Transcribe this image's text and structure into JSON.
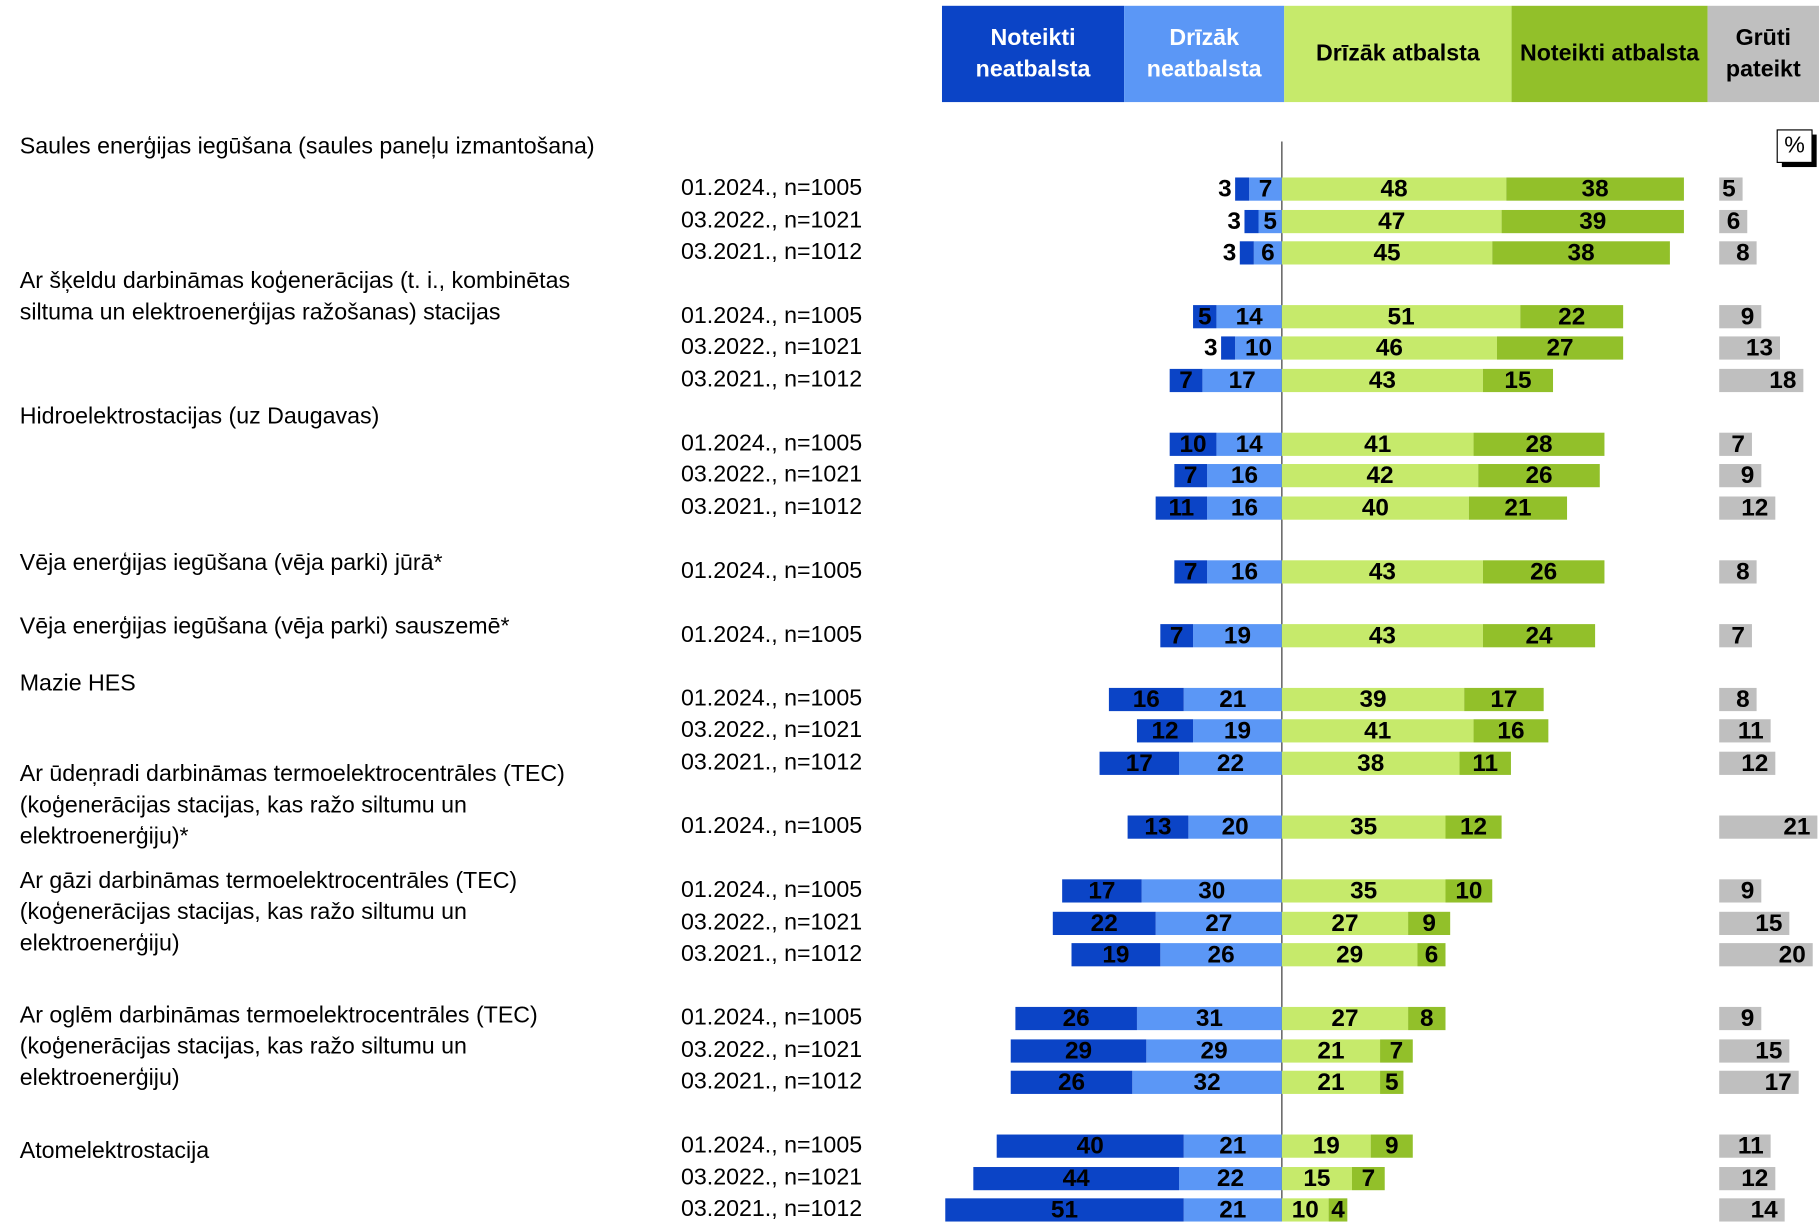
{
  "chart_data": {
    "type": "diverging_bar",
    "unit_label": "%",
    "series": [
      {
        "name": "Noteikti neatbalsta",
        "color": "#0b44c6",
        "side": "negative"
      },
      {
        "name": "Drīzāk neatbalsta",
        "color": "#5b97f6",
        "side": "negative"
      },
      {
        "name": "Drīzāk atbalsta",
        "color": "#c6ea6b",
        "side": "positive"
      },
      {
        "name": "Noteikti atbalsta",
        "color": "#92c02a",
        "side": "positive"
      },
      {
        "name": "Grūti pateikt",
        "color": "#bfbfbf",
        "side": "separate"
      }
    ],
    "groups": [
      {
        "label": [
          "Saules enerģijas iegūšana (saules paneļu izmantošana)"
        ],
        "rows": [
          {
            "label": "01.2024., n=1005",
            "values": [
              3,
              7,
              48,
              38,
              5
            ]
          },
          {
            "label": "03.2022., n=1021",
            "values": [
              3,
              5,
              47,
              39,
              6
            ]
          },
          {
            "label": "03.2021., n=1012",
            "values": [
              3,
              6,
              45,
              38,
              8
            ]
          }
        ]
      },
      {
        "label": [
          "Ar šķeldu darbināmas koģenerācijas (t. i., kombinētas",
          "siltuma un elektroenerģijas ražošanas) stacijas"
        ],
        "rows": [
          {
            "label": "01.2024., n=1005",
            "values": [
              5,
              14,
              51,
              22,
              9
            ]
          },
          {
            "label": "03.2022., n=1021",
            "values": [
              3,
              10,
              46,
              27,
              13
            ]
          },
          {
            "label": "03.2021., n=1012",
            "values": [
              7,
              17,
              43,
              15,
              18
            ]
          }
        ]
      },
      {
        "label": [
          "Hidroelektrostacijas (uz Daugavas)"
        ],
        "rows": [
          {
            "label": "01.2024., n=1005",
            "values": [
              10,
              14,
              41,
              28,
              7
            ]
          },
          {
            "label": "03.2022., n=1021",
            "values": [
              7,
              16,
              42,
              26,
              9
            ]
          },
          {
            "label": "03.2021., n=1012",
            "values": [
              11,
              16,
              40,
              21,
              12
            ]
          }
        ]
      },
      {
        "label": [
          "Vēja enerģijas iegūšana (vēja parki) jūrā*"
        ],
        "rows": [
          {
            "label": "01.2024., n=1005",
            "values": [
              7,
              16,
              43,
              26,
              8
            ]
          }
        ]
      },
      {
        "label": [
          "Vēja enerģijas iegūšana (vēja parki) sauszemē*"
        ],
        "rows": [
          {
            "label": "01.2024., n=1005",
            "values": [
              7,
              19,
              43,
              24,
              7
            ]
          }
        ]
      },
      {
        "label": [
          "Mazie HES"
        ],
        "rows": [
          {
            "label": "01.2024., n=1005",
            "values": [
              16,
              21,
              39,
              17,
              8
            ]
          },
          {
            "label": "03.2022., n=1021",
            "values": [
              12,
              19,
              41,
              16,
              11
            ]
          },
          {
            "label": "03.2021., n=1012",
            "values": [
              17,
              22,
              38,
              11,
              12
            ]
          }
        ]
      },
      {
        "label": [
          "Ar ūdeņradi darbināmas termoelektrocentrāles (TEC)",
          "(koģenerācijas stacijas, kas ražo siltumu un",
          "elektroenerģiju)*"
        ],
        "rows": [
          {
            "label": "01.2024., n=1005",
            "values": [
              13,
              20,
              35,
              12,
              21
            ]
          }
        ]
      },
      {
        "label": [
          "Ar gāzi darbināmas termoelektrocentrāles (TEC)",
          "(koģenerācijas stacijas, kas ražo siltumu un",
          "elektroenerģiju)"
        ],
        "rows": [
          {
            "label": "01.2024., n=1005",
            "values": [
              17,
              30,
              35,
              10,
              9
            ]
          },
          {
            "label": "03.2022., n=1021",
            "values": [
              22,
              27,
              27,
              9,
              15
            ]
          },
          {
            "label": "03.2021., n=1012",
            "values": [
              19,
              26,
              29,
              6,
              20
            ]
          }
        ]
      },
      {
        "label": [
          "Ar oglēm darbināmas termoelektrocentrāles (TEC)",
          "(koģenerācijas stacijas, kas ražo siltumu un",
          "elektroenerģiju)"
        ],
        "rows": [
          {
            "label": "01.2024., n=1005",
            "values": [
              26,
              31,
              27,
              8,
              9
            ]
          },
          {
            "label": "03.2022., n=1021",
            "values": [
              29,
              29,
              21,
              7,
              15
            ]
          },
          {
            "label": "03.2021., n=1012",
            "values": [
              26,
              32,
              21,
              5,
              17
            ]
          }
        ]
      },
      {
        "label": [
          "Atomelektrostacija"
        ],
        "rows": [
          {
            "label": "01.2024., n=1005",
            "values": [
              40,
              21,
              19,
              9,
              11
            ]
          },
          {
            "label": "03.2022., n=1021",
            "values": [
              44,
              22,
              15,
              7,
              12
            ]
          },
          {
            "label": "03.2021., n=1012",
            "values": [
              51,
              21,
              10,
              4,
              14
            ]
          }
        ]
      }
    ]
  }
}
